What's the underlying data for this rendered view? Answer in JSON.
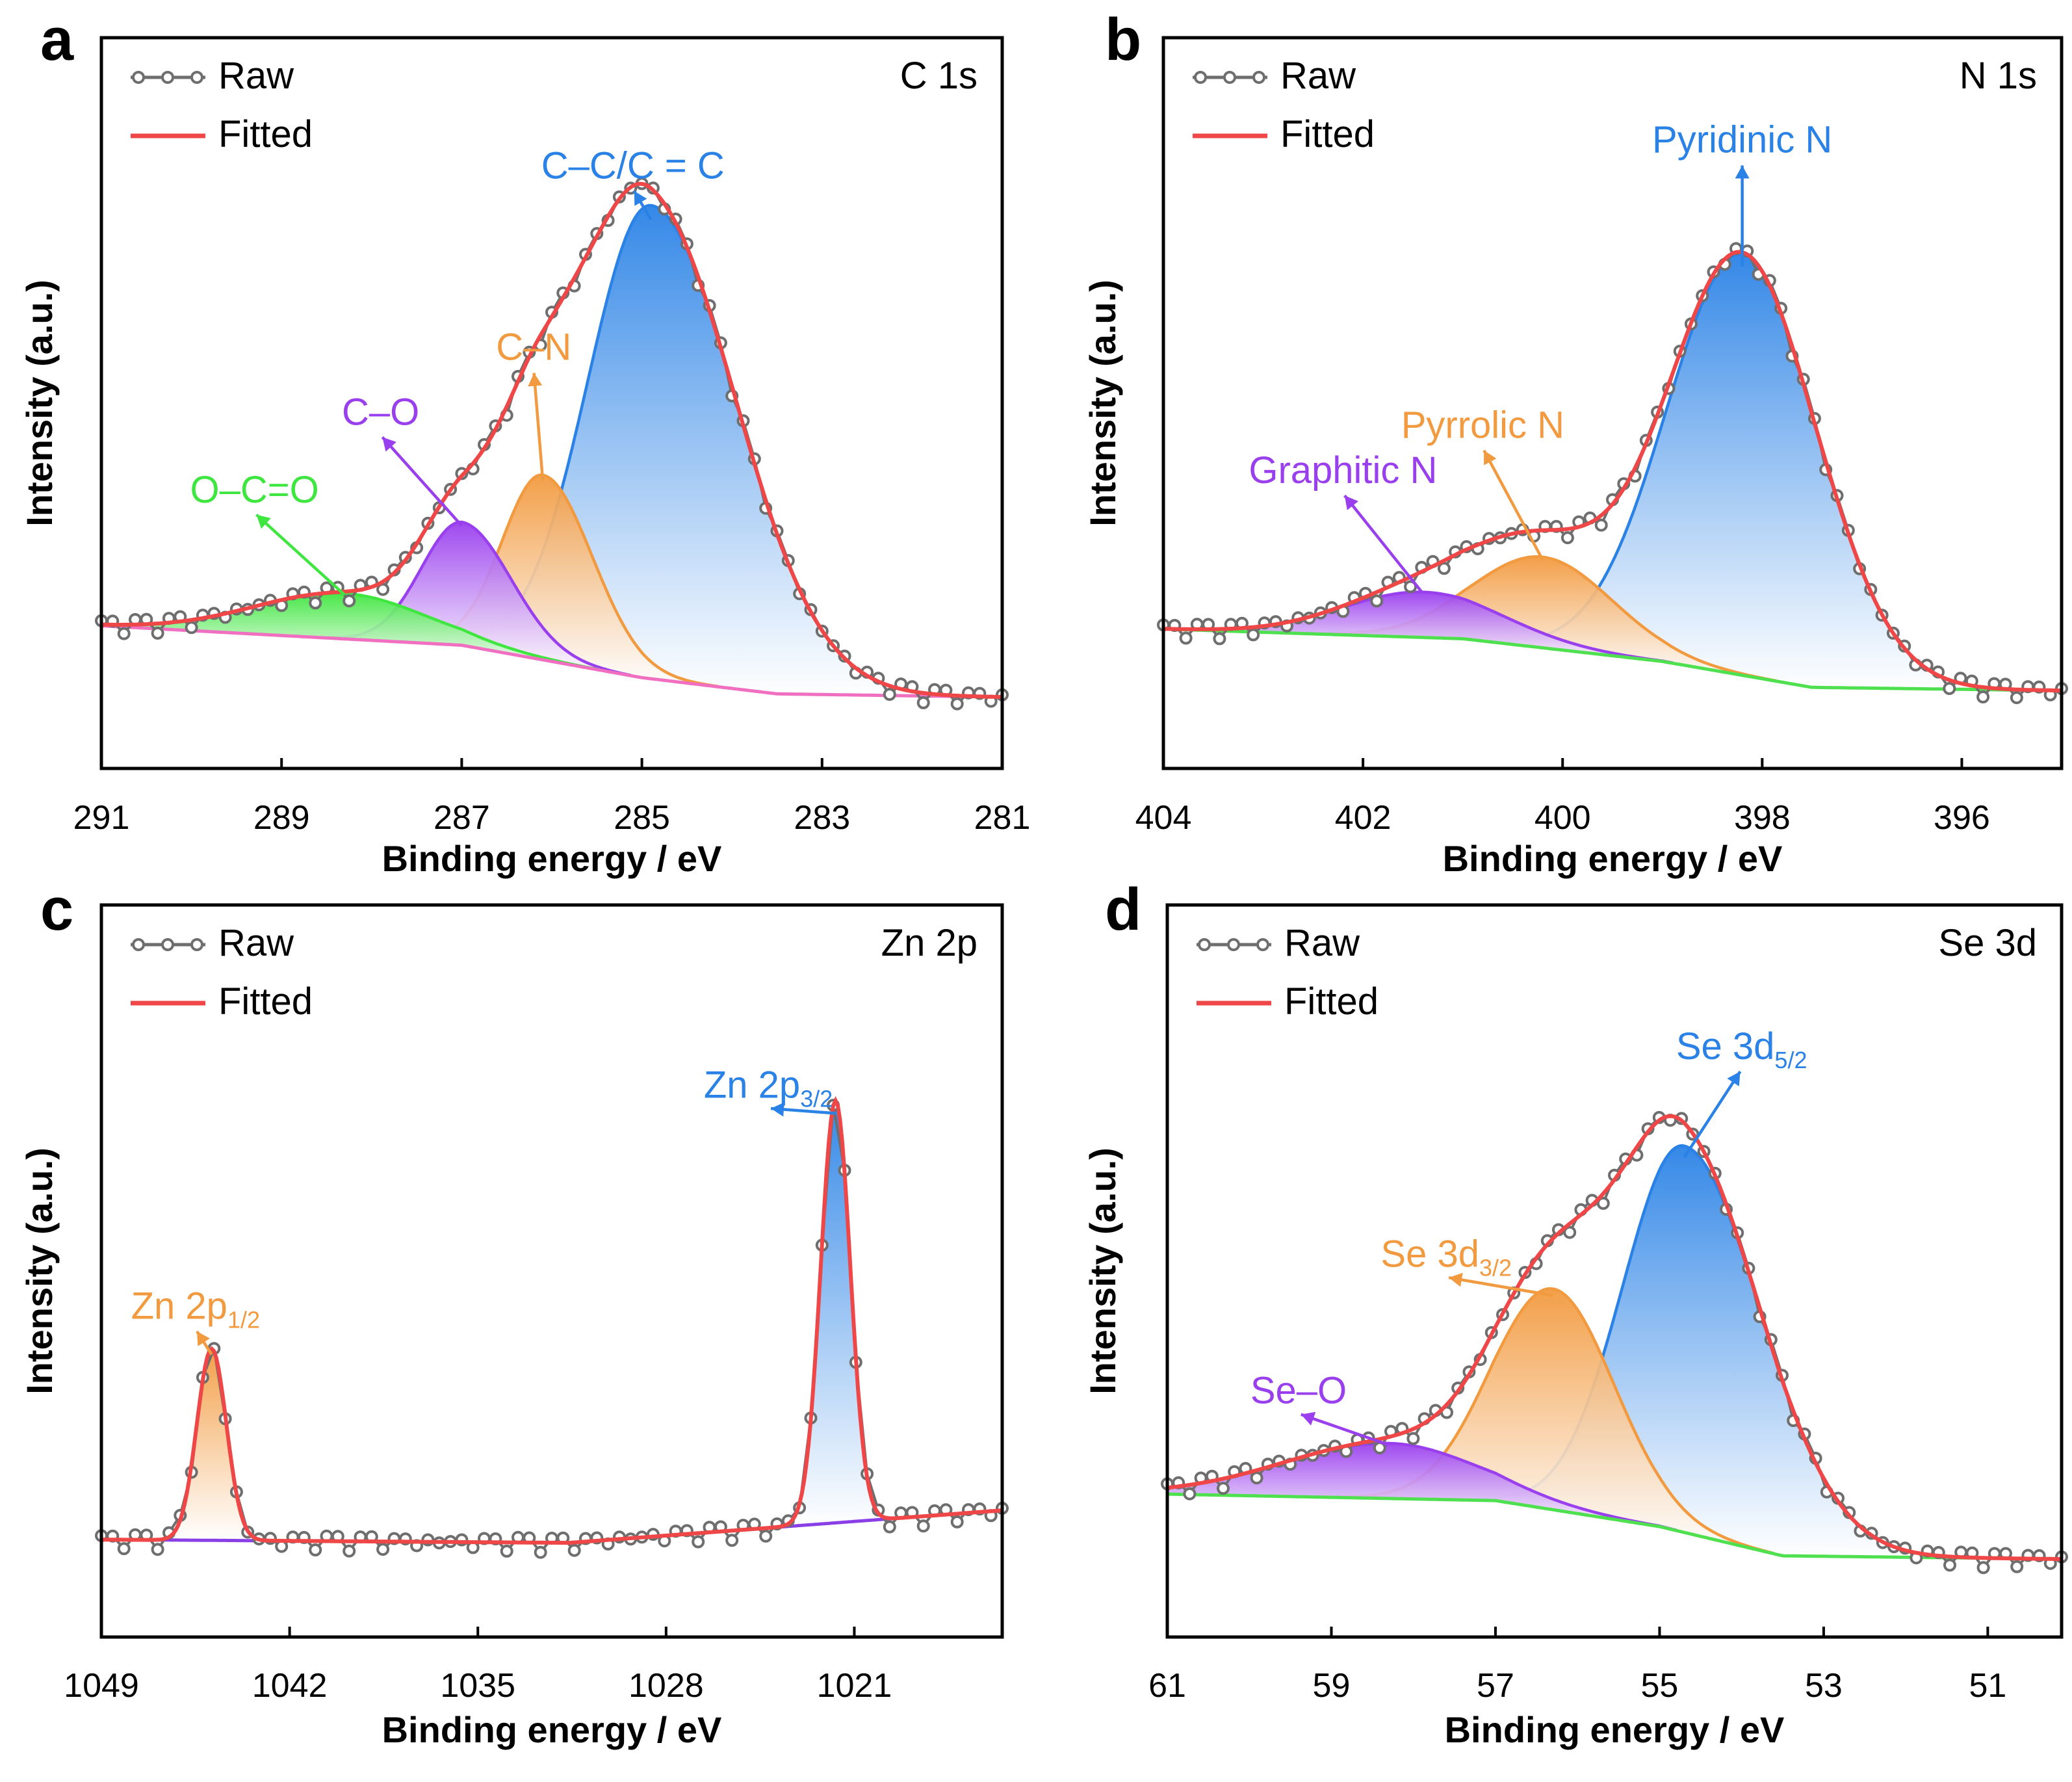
{
  "legend": {
    "raw": "Raw",
    "fitted": "Fitted"
  },
  "colors": {
    "raw": "#6e6e6e",
    "fitted": "#ef4747",
    "blue": "#2a82e6",
    "orange": "#f29a3f",
    "purple": "#9a3fee",
    "green": "#3fe63f",
    "pink": "#f06fc0",
    "baseline_green": "#4ee04e",
    "baseline_purple": "#8a3fe6"
  },
  "chart_data": [
    {
      "panel": "a",
      "type": "line",
      "element": "C 1s",
      "xlabel": "Binding energy / eV",
      "ylabel": "Intensity (a.u.)",
      "xlim": [
        291,
        281
      ],
      "xticks": [
        "291",
        "289",
        "287",
        "285",
        "283",
        "281"
      ],
      "ylim": [
        0,
        100
      ],
      "baseline": {
        "x": [
          291,
          287,
          285,
          283.5,
          281
        ],
        "y": [
          20,
          17,
          12,
          9.5,
          9
        ]
      },
      "peaks": [
        {
          "name": "C–C/C = C",
          "label": [
            "C–C/C = C"
          ],
          "center": 284.9,
          "height": 73,
          "left_width": 0.7,
          "right_width": 0.95,
          "color": "blue",
          "label_anchor": [
            285.1,
            89
          ]
        },
        {
          "name": "C–N",
          "label": [
            "C–N"
          ],
          "center": 286.1,
          "height": 28.5,
          "left_width": 0.45,
          "right_width": 0.55,
          "color": "orange",
          "label_anchor": [
            286.2,
            61
          ]
        },
        {
          "name": "C–O",
          "label": [
            "C–O"
          ],
          "center": 287.0,
          "height": 19,
          "left_width": 0.45,
          "right_width": 0.55,
          "color": "purple",
          "label_anchor": [
            287.9,
            51
          ]
        },
        {
          "name": "O–C=O",
          "label": [
            "O–C=O"
          ],
          "center": 288.3,
          "height": 7,
          "left_width": 1.0,
          "right_width": 0.9,
          "color": "green",
          "label_anchor": [
            289.3,
            39
          ]
        }
      ]
    },
    {
      "panel": "b",
      "type": "line",
      "element": "N 1s",
      "xlabel": "Binding energy / eV",
      "ylabel": "Intensity (a.u.)",
      "xlim": [
        404,
        395
      ],
      "xticks": [
        "404",
        "402",
        "400",
        "398",
        "396"
      ],
      "ylim": [
        0,
        100
      ],
      "baseline": {
        "x": [
          404,
          401,
          399,
          397.5,
          395
        ],
        "y": [
          19.5,
          18,
          14.5,
          10.5,
          10
        ]
      },
      "peaks": [
        {
          "name": "Pyridinic N",
          "label": [
            "Pyridinic N"
          ],
          "center": 398.2,
          "height": 65,
          "left_width": 0.75,
          "right_width": 0.75,
          "color": "blue",
          "label_anchor": [
            398.2,
            93
          ]
        },
        {
          "name": "Pyrrolic N",
          "label": [
            "Pyrrolic N"
          ],
          "center": 400.2,
          "height": 14,
          "left_width": 0.7,
          "right_width": 0.7,
          "color": "orange",
          "label_anchor": [
            400.8,
            49
          ]
        },
        {
          "name": "Graphitic N",
          "label": [
            "Graphitic N"
          ],
          "center": 401.4,
          "height": 7,
          "left_width": 0.8,
          "right_width": 0.8,
          "color": "purple",
          "label_anchor": [
            402.2,
            42
          ]
        }
      ]
    },
    {
      "panel": "c",
      "type": "line",
      "element": "Zn 2p",
      "xlabel": "Binding energy / eV",
      "ylabel": "Intensity (a.u.)",
      "xlim": [
        1049,
        1015.5
      ],
      "xticks": [
        "1049",
        "1042",
        "1035",
        "1028",
        "1021"
      ],
      "ylim": [
        0,
        100
      ],
      "baseline": {
        "x": [
          1049,
          1031.6,
          1015.5
        ],
        "y": [
          13,
          12.5,
          17.5
        ]
      },
      "peaks": [
        {
          "name": "Zn 2p3/2",
          "label": [
            "Zn 2p",
            "3/2",
            ""
          ],
          "center": 1021.7,
          "height": 65,
          "left_width": 0.55,
          "right_width": 0.55,
          "color": "blue",
          "label_anchor": [
            1024.2,
            81
          ]
        },
        {
          "name": "Zn 2p1/2",
          "label": [
            "Zn 2p",
            "1/2",
            ""
          ],
          "center": 1044.9,
          "height": 29.5,
          "left_width": 0.55,
          "right_width": 0.55,
          "color": "orange",
          "label_anchor": [
            1045.5,
            47
          ]
        }
      ]
    },
    {
      "panel": "d",
      "type": "line",
      "element": "Se 3d",
      "xlabel": "Binding energy / eV",
      "ylabel": "Intensity (a.u.)",
      "xlim": [
        61,
        50.1
      ],
      "xticks": [
        "61",
        "59",
        "57",
        "55",
        "53",
        "51"
      ],
      "ylim": [
        0,
        100
      ],
      "baseline": {
        "x": [
          61,
          57,
          55,
          53.5,
          50.1
        ],
        "y": [
          20,
          19,
          15,
          10.5,
          10
        ]
      },
      "peaks": [
        {
          "name": "Se 3d5/2",
          "label": [
            "Se 3d",
            "5/2",
            ""
          ],
          "center": 54.7,
          "height": 59.5,
          "left_width": 0.75,
          "right_width": 0.95,
          "color": "blue",
          "label_anchor": [
            54.0,
            87
          ]
        },
        {
          "name": "Se 3d3/2",
          "label": [
            "Se 3d",
            "3/2",
            ""
          ],
          "center": 56.3,
          "height": 34,
          "left_width": 0.75,
          "right_width": 0.75,
          "color": "orange",
          "label_anchor": [
            57.6,
            55
          ]
        },
        {
          "name": "Se–O",
          "label": [
            "Se–O"
          ],
          "center": 58.3,
          "height": 8.5,
          "left_width": 1.3,
          "right_width": 1.1,
          "color": "purple",
          "label_anchor": [
            59.4,
            34
          ]
        }
      ]
    }
  ]
}
